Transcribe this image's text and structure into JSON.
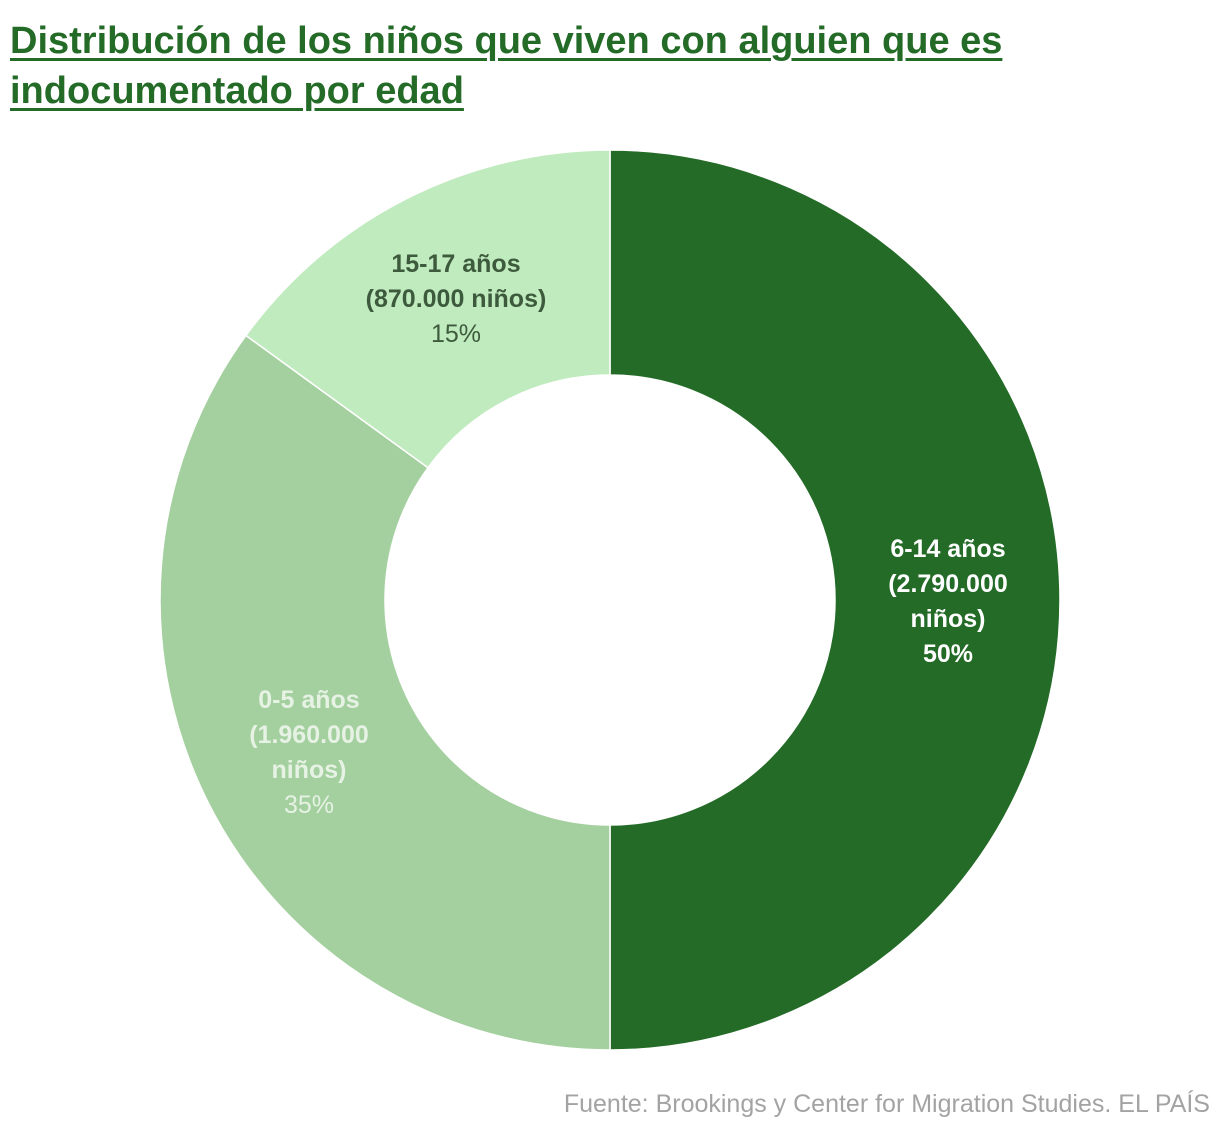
{
  "chart_data": {
    "type": "pie",
    "title": "Distribución de los niños que viven con alguien que es indocumentado por edad",
    "slices": [
      {
        "label": "6-14 años",
        "detail": [
          "(2.790.000",
          "niños)"
        ],
        "percent_label": "50%",
        "value": 2790000,
        "percent": 50,
        "color": "#236b27",
        "text_color": "#ffffff"
      },
      {
        "label": "0-5 años",
        "detail": [
          "(1.960.000",
          "niños)"
        ],
        "percent_label": "35%",
        "value": 1960000,
        "percent": 35,
        "color": "#a4cf9f",
        "text_color": "#e6f2e4"
      },
      {
        "label": "15-17 años",
        "detail": [
          "(870.000 niños)"
        ],
        "percent_label": "15%",
        "value": 870000,
        "percent": 15,
        "color": "#c0ebbe",
        "text_color": "#3d5a3d"
      }
    ],
    "source": "Fuente: Brookings y Center for Migration Studies. EL PAÍS"
  }
}
